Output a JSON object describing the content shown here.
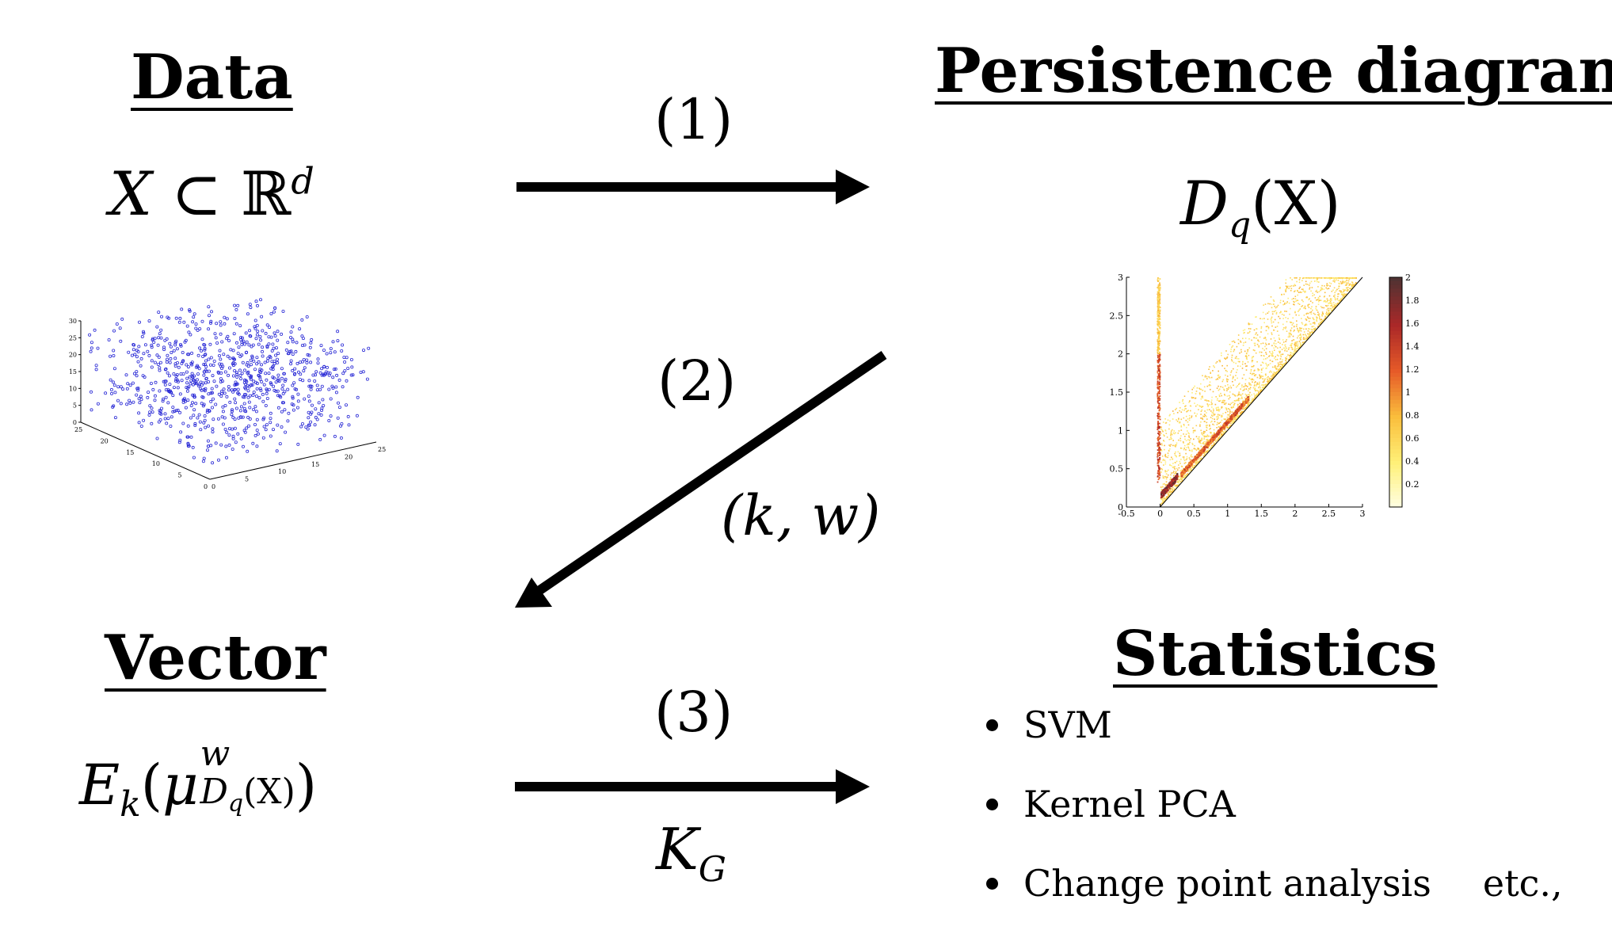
{
  "headings": {
    "data": "Data",
    "persistence": "Persistence diagram",
    "vector": "Vector",
    "statistics": "Statistics"
  },
  "formulas": {
    "data_set": {
      "X": "X",
      "subset": "⊂",
      "R": "ℝ",
      "d": "d"
    },
    "diagram": {
      "D": "D",
      "q": "q",
      "X": "(X)"
    },
    "vector": {
      "E": "E",
      "k": "k",
      "open": "(",
      "mu": "μ",
      "w": "w",
      "sub": "D",
      "subq": "q",
      "subX": "(X)",
      "close": ")"
    }
  },
  "steps": {
    "one": "(1)",
    "two": "(2)",
    "two_params": "(k, w)",
    "three": "(3)",
    "kernel_K": "K",
    "kernel_G": "G"
  },
  "statistics_items": [
    "SVM",
    "Kernel PCA",
    "Change point analysis"
  ],
  "etc": "etc.,",
  "scatter3d": {
    "z_ticks": [
      "30",
      "25",
      "20",
      "15",
      "10",
      "5",
      "0"
    ],
    "x_ticks": [
      "0",
      "5",
      "10",
      "15",
      "20",
      "25"
    ],
    "y_ticks": [
      "0",
      "5",
      "10",
      "15",
      "20",
      "25"
    ],
    "point_color": "#2b2bd6",
    "point_count": 900
  },
  "persistence_plot": {
    "x_ticks": [
      "-0.5",
      "0",
      "0.5",
      "1",
      "1.5",
      "2",
      "2.5",
      "3"
    ],
    "y_ticks": [
      "0",
      "0.5",
      "1",
      "1.5",
      "2",
      "2.5",
      "3"
    ],
    "colorbar_ticks": [
      "0.2",
      "0.4",
      "0.6",
      "0.8",
      "1",
      "1.2",
      "1.4",
      "1.6",
      "1.8",
      "2"
    ],
    "xlim": [
      -0.5,
      3
    ],
    "ylim": [
      0,
      3
    ],
    "clim": [
      0,
      2
    ]
  }
}
